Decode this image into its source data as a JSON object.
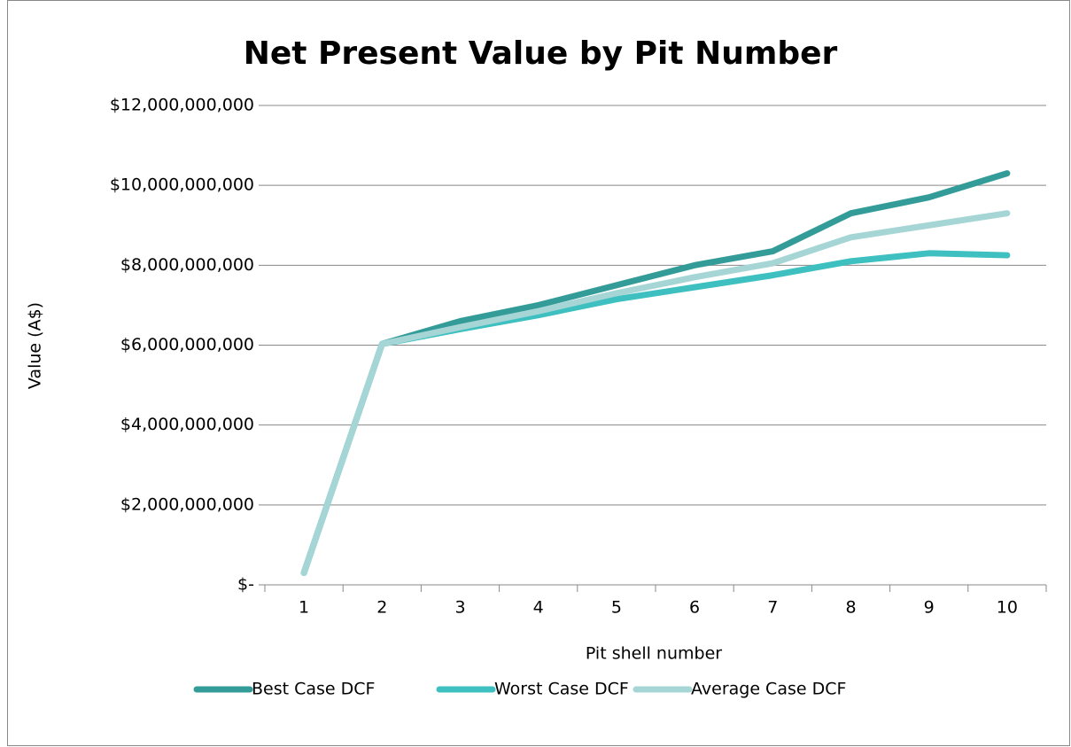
{
  "chart_data": {
    "type": "line",
    "title": "Net Present Value by Pit Number",
    "x_label": "Pit shell number",
    "y_label": "Value (A$)",
    "categories": [
      "1",
      "2",
      "3",
      "4",
      "5",
      "6",
      "7",
      "8",
      "9",
      "10"
    ],
    "series": [
      {
        "name": "Best Case DCF",
        "color": "#339c99",
        "values": [
          300000000,
          6030000000,
          6600000000,
          7000000000,
          7500000000,
          8000000000,
          8350000000,
          9300000000,
          9700000000,
          10300000000
        ]
      },
      {
        "name": "Worst Case DCF",
        "color": "#3ebfc0",
        "values": [
          300000000,
          6030000000,
          6400000000,
          6750000000,
          7150000000,
          7450000000,
          7750000000,
          8100000000,
          8300000000,
          8250000000
        ]
      },
      {
        "name": "Average Case DCF",
        "color": "#a6d5d6",
        "values": [
          300000000,
          6030000000,
          6450000000,
          6850000000,
          7300000000,
          7700000000,
          8050000000,
          8700000000,
          9000000000,
          9300000000
        ]
      }
    ],
    "ylim": [
      0,
      12000000000
    ],
    "yticks": [
      {
        "value": 0,
        "label": "$-"
      },
      {
        "value": 2000000000,
        "label": "$2,000,000,000"
      },
      {
        "value": 4000000000,
        "label": "$4,000,000,000"
      },
      {
        "value": 6000000000,
        "label": "$6,000,000,000"
      },
      {
        "value": 8000000000,
        "label": "$8,000,000,000"
      },
      {
        "value": 10000000000,
        "label": "$10,000,000,000"
      },
      {
        "value": 12000000000,
        "label": "$12,000,000,000"
      }
    ],
    "grid": true,
    "legend": "bottom"
  }
}
